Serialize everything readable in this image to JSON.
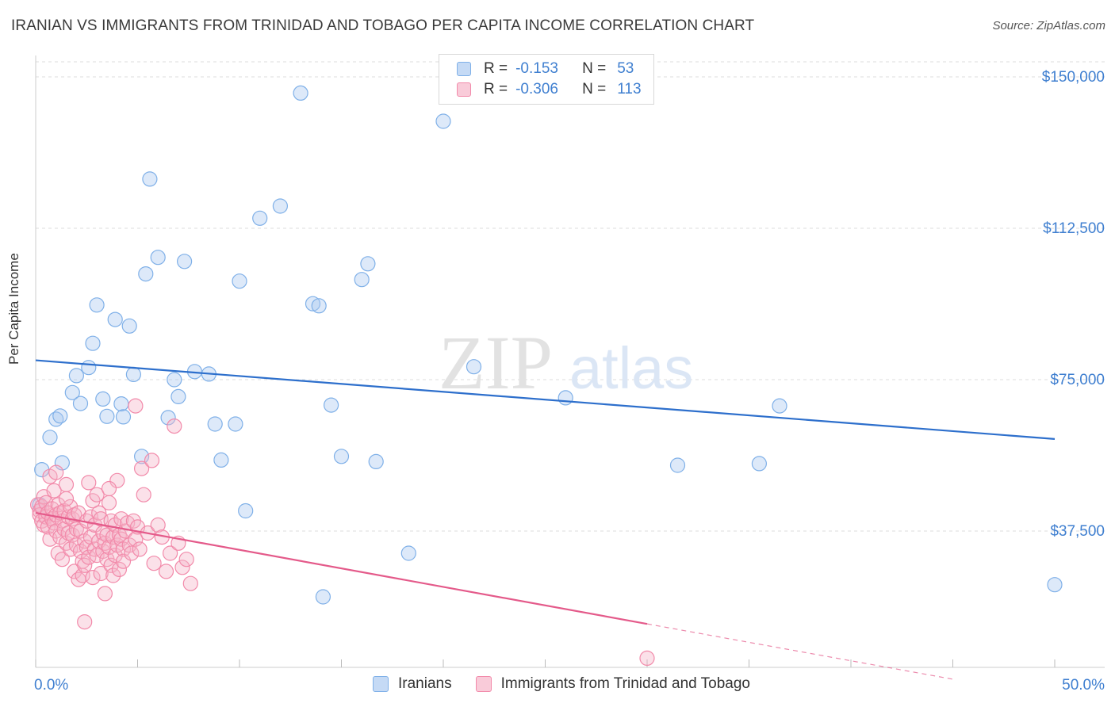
{
  "header": {
    "title": "IRANIAN VS IMMIGRANTS FROM TRINIDAD AND TOBAGO PER CAPITA INCOME CORRELATION CHART",
    "source": "Source: ZipAtlas.com"
  },
  "watermark": {
    "zip": "ZIP",
    "atlas": "atlas"
  },
  "legend": {
    "rows": [
      {
        "r_label": "R =",
        "r_value": "-0.153",
        "n_label": "N =",
        "n_value": "53",
        "color": "#a9c8f0"
      },
      {
        "r_label": "R =",
        "r_value": "-0.306",
        "n_label": "N =",
        "n_value": "113",
        "color": "#f5b5c8"
      }
    ]
  },
  "bottom_legend": {
    "items": [
      {
        "label": "Iranians",
        "color": "#a9c8f0"
      },
      {
        "label": "Immigrants from Trinidad and Tobago",
        "color": "#f5b5c8"
      }
    ]
  },
  "chart_data": {
    "type": "scatter",
    "ylabel": "Per Capita Income",
    "xlim": [
      0,
      50
    ],
    "ylim": [
      0,
      150000
    ],
    "x_tick_labels": {
      "left": "0.0%",
      "right": "50.0%"
    },
    "y_ticks": [
      {
        "value": 150000,
        "label": "$150,000"
      },
      {
        "value": 112500,
        "label": "$112,500"
      },
      {
        "value": 75000,
        "label": "$75,000"
      },
      {
        "value": 37500,
        "label": "$37,500"
      }
    ],
    "grid": true,
    "series": [
      {
        "name": "Iranians",
        "color": "#7fb0e8",
        "trend": {
          "x": [
            0,
            50
          ],
          "y": [
            79800,
            60300
          ],
          "color": "#2d6fcc"
        },
        "points": [
          [
            0.3,
            52700
          ],
          [
            0.7,
            60700
          ],
          [
            1.0,
            65200
          ],
          [
            1.2,
            66000
          ],
          [
            1.3,
            54400
          ],
          [
            1.8,
            71800
          ],
          [
            2.0,
            76000
          ],
          [
            2.2,
            69100
          ],
          [
            2.6,
            78000
          ],
          [
            2.8,
            84000
          ],
          [
            3.0,
            93500
          ],
          [
            3.3,
            70200
          ],
          [
            3.5,
            65900
          ],
          [
            3.9,
            89900
          ],
          [
            4.2,
            69000
          ],
          [
            4.3,
            65800
          ],
          [
            4.6,
            88300
          ],
          [
            4.8,
            76300
          ],
          [
            5.2,
            56000
          ],
          [
            5.4,
            101200
          ],
          [
            5.6,
            124700
          ],
          [
            6.0,
            105300
          ],
          [
            6.5,
            65600
          ],
          [
            6.8,
            75000
          ],
          [
            7.0,
            70800
          ],
          [
            7.3,
            104300
          ],
          [
            7.8,
            77000
          ],
          [
            8.5,
            76400
          ],
          [
            8.8,
            64000
          ],
          [
            9.1,
            55100
          ],
          [
            9.8,
            64000
          ],
          [
            10.0,
            99400
          ],
          [
            10.3,
            42500
          ],
          [
            11.0,
            115000
          ],
          [
            12.0,
            118000
          ],
          [
            13.0,
            146000
          ],
          [
            13.6,
            93800
          ],
          [
            13.9,
            93300
          ],
          [
            14.1,
            21200
          ],
          [
            14.5,
            68700
          ],
          [
            15.0,
            56000
          ],
          [
            16.0,
            99800
          ],
          [
            16.3,
            103700
          ],
          [
            16.7,
            54700
          ],
          [
            18.3,
            32000
          ],
          [
            20.0,
            139000
          ],
          [
            21.5,
            78200
          ],
          [
            26.0,
            70500
          ],
          [
            31.5,
            53800
          ],
          [
            35.5,
            54200
          ],
          [
            36.5,
            68500
          ],
          [
            50.0,
            24200
          ],
          [
            0.2,
            44000
          ]
        ]
      },
      {
        "name": "Immigrants from Trinidad and Tobago",
        "color": "#f28aaa",
        "trend": {
          "x": [
            0,
            30
          ],
          "y": [
            42000,
            14500
          ],
          "color": "#e45a8a"
        },
        "trend_dashed": {
          "x": [
            30,
            45
          ],
          "y": [
            14500,
            800
          ]
        },
        "points": [
          [
            0.1,
            44000
          ],
          [
            0.2,
            42500
          ],
          [
            0.2,
            41500
          ],
          [
            0.3,
            43500
          ],
          [
            0.3,
            40000
          ],
          [
            0.4,
            46000
          ],
          [
            0.4,
            39000
          ],
          [
            0.5,
            44500
          ],
          [
            0.5,
            41000
          ],
          [
            0.6,
            42000
          ],
          [
            0.6,
            38500
          ],
          [
            0.7,
            35500
          ],
          [
            0.7,
            51000
          ],
          [
            0.8,
            43000
          ],
          [
            0.8,
            40500
          ],
          [
            0.9,
            47500
          ],
          [
            0.9,
            39500
          ],
          [
            1.0,
            41500
          ],
          [
            1.0,
            37500
          ],
          [
            1.1,
            44000
          ],
          [
            1.1,
            32000
          ],
          [
            1.2,
            42000
          ],
          [
            1.2,
            36000
          ],
          [
            1.3,
            40000
          ],
          [
            1.3,
            30500
          ],
          [
            1.4,
            42500
          ],
          [
            1.4,
            38000
          ],
          [
            1.5,
            49000
          ],
          [
            1.5,
            34500
          ],
          [
            1.6,
            41000
          ],
          [
            1.6,
            37000
          ],
          [
            1.7,
            43500
          ],
          [
            1.7,
            33000
          ],
          [
            1.8,
            40500
          ],
          [
            1.8,
            36500
          ],
          [
            1.9,
            41500
          ],
          [
            1.9,
            27500
          ],
          [
            2.0,
            38000
          ],
          [
            2.0,
            34000
          ],
          [
            2.1,
            42000
          ],
          [
            2.1,
            25500
          ],
          [
            2.2,
            32500
          ],
          [
            2.2,
            37500
          ],
          [
            2.3,
            30000
          ],
          [
            2.3,
            26500
          ],
          [
            2.4,
            35000
          ],
          [
            2.4,
            29000
          ],
          [
            2.5,
            40000
          ],
          [
            2.5,
            33500
          ],
          [
            2.6,
            31000
          ],
          [
            2.6,
            49500
          ],
          [
            2.7,
            41000
          ],
          [
            2.7,
            36000
          ],
          [
            2.8,
            45000
          ],
          [
            2.8,
            26000
          ],
          [
            2.9,
            39000
          ],
          [
            2.9,
            33000
          ],
          [
            3.0,
            46500
          ],
          [
            3.0,
            31500
          ],
          [
            3.1,
            42000
          ],
          [
            3.1,
            35000
          ],
          [
            3.2,
            40500
          ],
          [
            3.2,
            27000
          ],
          [
            3.3,
            37000
          ],
          [
            3.3,
            32500
          ],
          [
            3.4,
            34500
          ],
          [
            3.4,
            22000
          ],
          [
            3.5,
            36500
          ],
          [
            3.5,
            30500
          ],
          [
            3.6,
            44500
          ],
          [
            3.6,
            33500
          ],
          [
            3.7,
            40000
          ],
          [
            3.7,
            29000
          ],
          [
            3.8,
            36000
          ],
          [
            3.8,
            26500
          ],
          [
            3.9,
            39000
          ],
          [
            3.9,
            31500
          ],
          [
            4.0,
            50000
          ],
          [
            4.0,
            34000
          ],
          [
            4.1,
            36500
          ],
          [
            4.1,
            28000
          ],
          [
            4.2,
            40500
          ],
          [
            4.2,
            35500
          ],
          [
            4.3,
            33000
          ],
          [
            4.3,
            30000
          ],
          [
            4.4,
            37500
          ],
          [
            4.5,
            39500
          ],
          [
            4.6,
            34000
          ],
          [
            4.7,
            32000
          ],
          [
            4.8,
            40000
          ],
          [
            4.9,
            35500
          ],
          [
            5.0,
            38500
          ],
          [
            5.1,
            33000
          ],
          [
            5.2,
            53000
          ],
          [
            5.3,
            46500
          ],
          [
            5.5,
            37000
          ],
          [
            5.7,
            55000
          ],
          [
            5.8,
            29500
          ],
          [
            6.0,
            39000
          ],
          [
            6.2,
            36000
          ],
          [
            6.4,
            27500
          ],
          [
            6.6,
            32000
          ],
          [
            6.8,
            63500
          ],
          [
            7.0,
            34500
          ],
          [
            7.2,
            28500
          ],
          [
            7.4,
            30500
          ],
          [
            7.6,
            24500
          ],
          [
            2.4,
            15000
          ],
          [
            30.0,
            6000
          ],
          [
            4.9,
            68500
          ],
          [
            1.0,
            52000
          ],
          [
            1.5,
            45500
          ],
          [
            3.6,
            48000
          ]
        ]
      }
    ]
  }
}
